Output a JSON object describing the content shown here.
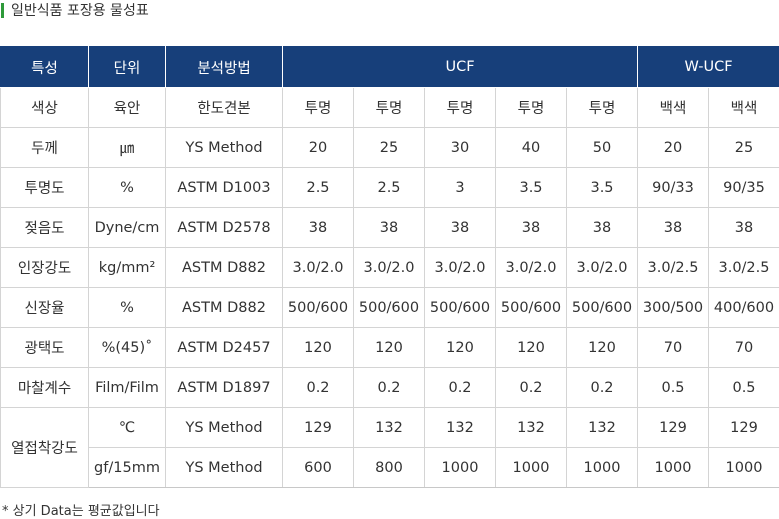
{
  "section_title": "일반식품 포장용 물성표",
  "colors": {
    "accent": "#2e9a3a",
    "header_bg": "#173f7a",
    "header_text": "#ffffff"
  },
  "headers": {
    "property": "특성",
    "unit": "단위",
    "method": "분석방법",
    "ucf": "UCF",
    "wucf": "W-UCF"
  },
  "rows": [
    {
      "property": "색상",
      "unit": "육안",
      "method": "한도견본",
      "values": [
        "투명",
        "투명",
        "투명",
        "투명",
        "투명",
        "백색",
        "백색"
      ]
    },
    {
      "property": "두께",
      "unit": "㎛",
      "method": "YS Method",
      "values": [
        "20",
        "25",
        "30",
        "40",
        "50",
        "20",
        "25"
      ]
    },
    {
      "property": "투명도",
      "unit": "%",
      "method": "ASTM D1003",
      "values": [
        "2.5",
        "2.5",
        "3",
        "3.5",
        "3.5",
        "90/33",
        "90/35"
      ]
    },
    {
      "property": "젖음도",
      "unit": "Dyne/cm",
      "method": "ASTM D2578",
      "values": [
        "38",
        "38",
        "38",
        "38",
        "38",
        "38",
        "38"
      ]
    },
    {
      "property": "인장강도",
      "unit": "kg/mm²",
      "method": "ASTM D882",
      "values": [
        "3.0/2.0",
        "3.0/2.0",
        "3.0/2.0",
        "3.0/2.0",
        "3.0/2.0",
        "3.0/2.5",
        "3.0/2.5"
      ]
    },
    {
      "property": "신장율",
      "unit": "%",
      "method": "ASTM D882",
      "values": [
        "500/600",
        "500/600",
        "500/600",
        "500/600",
        "500/600",
        "300/500",
        "400/600"
      ]
    },
    {
      "property": "광택도",
      "unit": "%(45)˚",
      "method": "ASTM D2457",
      "values": [
        "120",
        "120",
        "120",
        "120",
        "120",
        "70",
        "70"
      ]
    },
    {
      "property": "마찰계수",
      "unit": "Film/Film",
      "method": "ASTM D1897",
      "values": [
        "0.2",
        "0.2",
        "0.2",
        "0.2",
        "0.2",
        "0.5",
        "0.5"
      ]
    }
  ],
  "seal": {
    "property": "열접착강도",
    "rows": [
      {
        "unit": "℃",
        "method": "YS Method",
        "values": [
          "129",
          "132",
          "132",
          "132",
          "132",
          "129",
          "129"
        ]
      },
      {
        "unit": "gf/15mm",
        "method": "YS Method",
        "values": [
          "600",
          "800",
          "1000",
          "1000",
          "1000",
          "1000",
          "1000"
        ]
      }
    ]
  },
  "footnote": "* 상기 Data는 평균값입니다"
}
